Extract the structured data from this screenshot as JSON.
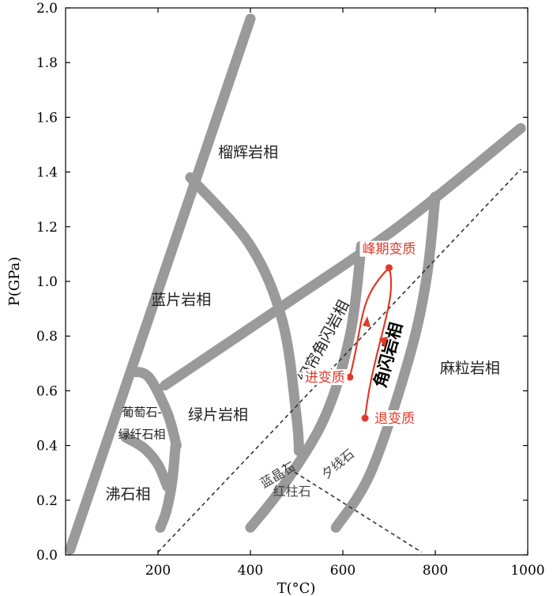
{
  "chart_data": {
    "type": "line",
    "xlabel": "T(°C)",
    "ylabel": "P(GPa)",
    "xlim": [
      0,
      1000
    ],
    "ylim": [
      0,
      2.0
    ],
    "x_ticks": [
      200,
      400,
      600,
      800,
      1000
    ],
    "y_ticks": [
      0,
      0.2,
      0.4,
      0.6,
      0.8,
      1.0,
      1.2,
      1.4,
      1.6,
      1.8,
      2.0
    ],
    "facies_labels": [
      {
        "text": "榴辉岩相",
        "x": 395,
        "y": 1.47
      },
      {
        "text": "蓝片岩相",
        "x": 250,
        "y": 0.93
      },
      {
        "text": "绿片岩相",
        "x": 330,
        "y": 0.51
      },
      {
        "text": "葡萄石-",
        "x": 165,
        "y": 0.52
      },
      {
        "text": "绿纤石相",
        "x": 165,
        "y": 0.44
      },
      {
        "text": "沸石相",
        "x": 135,
        "y": 0.22
      },
      {
        "text": "绿帘角闪岩相",
        "x": 560,
        "y": 0.78
      },
      {
        "text": "角闪岩相",
        "x": 700,
        "y": 0.73
      },
      {
        "text": "麻粒岩相",
        "x": 875,
        "y": 0.68
      }
    ],
    "mineral_labels": [
      {
        "text": "蓝晶石",
        "x": 460,
        "y": 0.29
      },
      {
        "text": "夕线石",
        "x": 590,
        "y": 0.33
      },
      {
        "text": "红柱石",
        "x": 490,
        "y": 0.23
      }
    ],
    "pt_path": {
      "color": "#e03a2a",
      "points": [
        {
          "label": "进变质",
          "x": 615,
          "y": 0.65
        },
        {
          "label": "峰期变质",
          "x": 700,
          "y": 1.05
        },
        {
          "label": "退变质",
          "x": 648,
          "y": 0.5
        }
      ]
    },
    "boundaries": [
      {
        "name": "main-left",
        "points": [
          [
            10,
            0.02
          ],
          [
            400,
            1.96
          ]
        ]
      },
      {
        "name": "blueschist-eclogite",
        "points": [
          [
            270,
            1.38
          ],
          [
            400,
            1.13
          ],
          [
            470,
            0.85
          ],
          [
            500,
            0.5
          ],
          [
            505,
            0.38
          ]
        ]
      },
      {
        "name": "eclogite-greenschist-amphibolite",
        "points": [
          [
            215,
            0.62
          ],
          [
            470,
            0.91
          ],
          [
            720,
            1.2
          ],
          [
            985,
            1.56
          ]
        ]
      },
      {
        "name": "greenschist-upper",
        "points": [
          [
            145,
            0.67
          ],
          [
            180,
            0.65
          ],
          [
            220,
            0.52
          ],
          [
            240,
            0.4
          ]
        ]
      },
      {
        "name": "prehnite-lower",
        "points": [
          [
            130,
            0.43
          ],
          [
            170,
            0.39
          ],
          [
            200,
            0.33
          ],
          [
            220,
            0.25
          ]
        ]
      },
      {
        "name": "lower-greenschist-curve",
        "points": [
          [
            205,
            0.1
          ],
          [
            218,
            0.16
          ],
          [
            230,
            0.26
          ],
          [
            238,
            0.4
          ]
        ]
      },
      {
        "name": "epidote-amphibolite-left",
        "points": [
          [
            400,
            0.1
          ],
          [
            470,
            0.25
          ],
          [
            560,
            0.5
          ],
          [
            615,
            0.8
          ],
          [
            640,
            1.13
          ]
        ]
      },
      {
        "name": "amphibolite-granulite",
        "points": [
          [
            585,
            0.1
          ],
          [
            660,
            0.3
          ],
          [
            740,
            0.7
          ],
          [
            780,
            1.0
          ],
          [
            800,
            1.31
          ]
        ]
      }
    ],
    "dashed_lines": [
      {
        "name": "kyanite-andalusite-sillimanite",
        "points": [
          [
            200,
            0.01
          ],
          [
            985,
            1.41
          ]
        ]
      },
      {
        "name": "andalusite-sillimanite",
        "points": [
          [
            470,
            0.33
          ],
          [
            770,
            0.01
          ]
        ]
      }
    ]
  }
}
